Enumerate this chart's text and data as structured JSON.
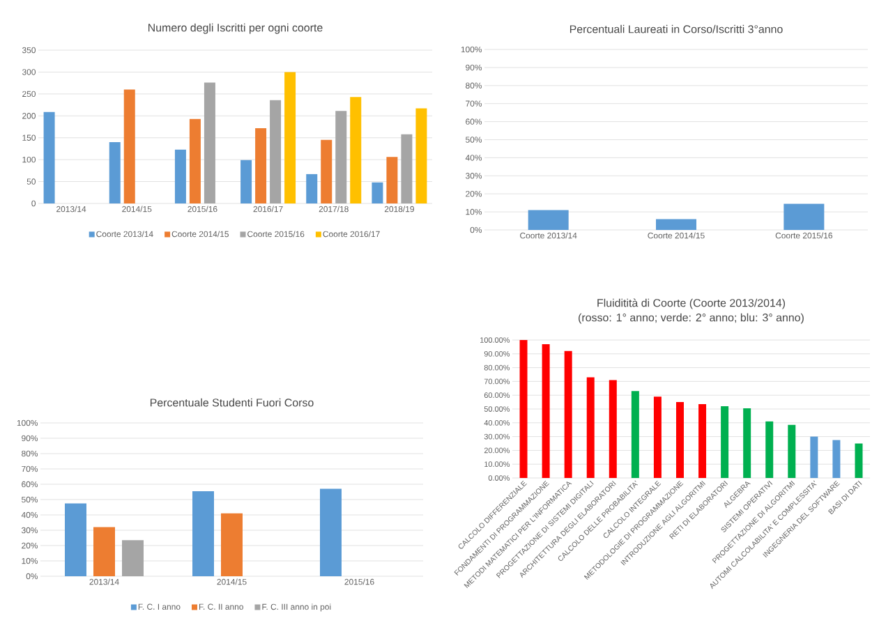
{
  "chart_data": [
    {
      "type": "bar",
      "title": "Numero degli Iscritti per ogni coorte",
      "categories": [
        "2013/14",
        "2014/15",
        "2015/16",
        "2016/17",
        "2017/18",
        "2018/19"
      ],
      "series": [
        {
          "name": "Coorte 2013/14",
          "color": "#5b9bd5",
          "values": [
            209,
            140,
            123,
            99,
            67,
            48
          ]
        },
        {
          "name": "Coorte 2014/15",
          "color": "#ed7d31",
          "values": [
            null,
            260,
            193,
            172,
            145,
            106
          ]
        },
        {
          "name": "Coorte 2015/16",
          "color": "#a5a5a5",
          "values": [
            null,
            null,
            276,
            236,
            211,
            158
          ]
        },
        {
          "name": "Coorte 2016/17",
          "color": "#ffc000",
          "values": [
            null,
            null,
            null,
            300,
            243,
            217
          ]
        }
      ],
      "ylim": [
        0,
        350
      ],
      "yticks": [
        0,
        50,
        100,
        150,
        200,
        250,
        300,
        350
      ],
      "grid": "y",
      "legend": "bottom"
    },
    {
      "type": "bar",
      "title": "Percentuali Laureati in Corso/Iscritti 3°anno",
      "categories": [
        "Coorte 2013/14",
        "Coorte 2014/15",
        "Coorte 2015/16"
      ],
      "series": [
        {
          "color": "#5b9bd5",
          "values": [
            11,
            6,
            14.5
          ]
        }
      ],
      "ylim": [
        0,
        100
      ],
      "yticks": [
        {
          "value": 0,
          "label": "0%"
        },
        {
          "value": 10,
          "label": "10%"
        },
        {
          "value": 20,
          "label": "20%"
        },
        {
          "value": 30,
          "label": "30%"
        },
        {
          "value": 40,
          "label": "40%"
        },
        {
          "value": 50,
          "label": "50%"
        },
        {
          "value": 60,
          "label": "60%"
        },
        {
          "value": 70,
          "label": "70%"
        },
        {
          "value": 80,
          "label": "80%"
        },
        {
          "value": 90,
          "label": "90%"
        },
        {
          "value": 100,
          "label": "100%"
        }
      ],
      "grid": "y"
    },
    {
      "type": "bar",
      "title": "Percentuale Studenti Fuori Corso",
      "categories": [
        "2013/14",
        "2014/15",
        "2015/16"
      ],
      "series": [
        {
          "name": "F. C. I anno",
          "color": "#5b9bd5",
          "values": [
            47.5,
            55.5,
            57
          ]
        },
        {
          "name": "F. C. II anno",
          "color": "#ed7d31",
          "values": [
            32,
            41,
            null
          ]
        },
        {
          "name": "F. C. III anno in poi",
          "color": "#a5a5a5",
          "values": [
            23.5,
            null,
            null
          ]
        }
      ],
      "ylim": [
        0,
        100
      ],
      "yticks": [
        {
          "value": 0,
          "label": "0%"
        },
        {
          "value": 10,
          "label": "10%"
        },
        {
          "value": 20,
          "label": "20%"
        },
        {
          "value": 30,
          "label": "30%"
        },
        {
          "value": 40,
          "label": "40%"
        },
        {
          "value": 50,
          "label": "50%"
        },
        {
          "value": 60,
          "label": "60%"
        },
        {
          "value": 70,
          "label": "70%"
        },
        {
          "value": 80,
          "label": "80%"
        },
        {
          "value": 90,
          "label": "90%"
        },
        {
          "value": 100,
          "label": "100%"
        }
      ],
      "grid": "y",
      "legend": "bottom"
    },
    {
      "type": "bar",
      "title": "Fluiditità di Coorte (Coorte 2013/2014)",
      "subtitle": "(rosso: 1° anno; verde: 2° anno; blu: 3° anno)",
      "categories": [
        "CALCOLO DIFFERENZIALE",
        "FONDAMENTI DI PROGRAMMAZIONE",
        "METODI MATEMATICI PER L'INFORMATICA",
        "PROGETTAZIONE DI SISTEMI DIGITALI",
        "ARCHITETTURA DEGLI ELABORATORI",
        "CALCOLO DELLE PROBABILITA'",
        "CALCOLO INTEGRALE",
        "METODOLOGIE DI PROGRAMMAZIONE",
        "INTRODUZIONE AGLI ALGORITMI",
        "RETI DI ELABORATORI",
        "ALGEBRA",
        "SISTEMI OPERATIVI",
        "PROGETTAZIONE DI ALGORITMI",
        "AUTOMI CALCOLABILITA' E COMPLESSITA'",
        "INGEGNERIA DEL SOFTWARE",
        "BASI DI DATI"
      ],
      "values": [
        100,
        97,
        92,
        73,
        71,
        63,
        59,
        55,
        53.5,
        52,
        50.5,
        41,
        38.5,
        30,
        27.5,
        25
      ],
      "colors": [
        "#ff0000",
        "#ff0000",
        "#ff0000",
        "#ff0000",
        "#ff0000",
        "#00b050",
        "#ff0000",
        "#ff0000",
        "#ff0000",
        "#00b050",
        "#00b050",
        "#00b050",
        "#00b050",
        "#5b9bd5",
        "#5b9bd5",
        "#00b050"
      ],
      "ylim": [
        0,
        100
      ],
      "yticks": [
        {
          "value": 0,
          "label": "0.00%"
        },
        {
          "value": 10,
          "label": "10.00%"
        },
        {
          "value": 20,
          "label": "20.00%"
        },
        {
          "value": 30,
          "label": "30.00%"
        },
        {
          "value": 40,
          "label": "40.00%"
        },
        {
          "value": 50,
          "label": "50.00%"
        },
        {
          "value": 60,
          "label": "60.00%"
        },
        {
          "value": 70,
          "label": "70.00%"
        },
        {
          "value": 80,
          "label": "80.00%"
        },
        {
          "value": 90,
          "label": "90.00%"
        },
        {
          "value": 100,
          "label": "100.00%"
        }
      ],
      "grid": "y"
    }
  ]
}
